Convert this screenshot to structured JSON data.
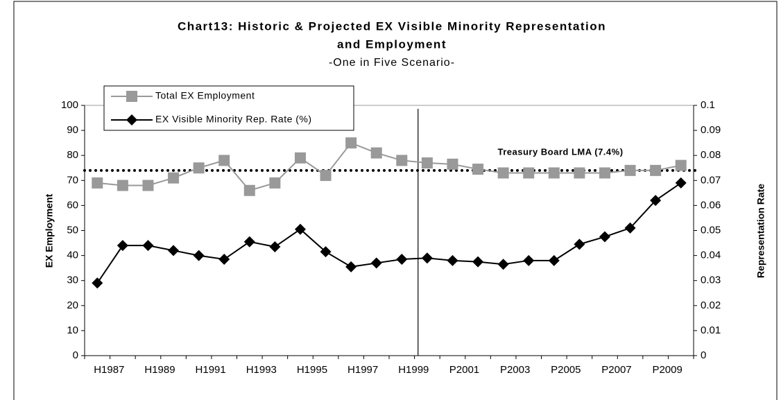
{
  "chart_data": {
    "type": "line",
    "title": "Chart13: Historic & Projected EX Visible Minority Representation",
    "title_line2": "and Employment",
    "subtitle": "-One in Five Scenario-",
    "y_label": "EX Employment",
    "y2_label": "Representation Rate",
    "categories": [
      "H1987",
      null,
      "H1989",
      null,
      "H1991",
      null,
      "H1993",
      null,
      "H1995",
      null,
      "H1997",
      null,
      "H1999",
      null,
      "P2001",
      null,
      "P2003",
      null,
      "P2005",
      null,
      "P2007",
      null,
      "P2009",
      null
    ],
    "series": [
      {
        "name": "Total EX Employment",
        "color": "#999999",
        "marker": "square",
        "values": [
          69,
          68,
          68,
          71,
          75,
          78,
          66,
          69,
          79,
          72,
          85,
          81,
          78,
          77,
          76.5,
          74.5,
          73,
          73,
          73,
          73,
          73,
          74,
          74,
          76
        ]
      },
      {
        "name": "EX Visible Minority Rep. Rate (%)",
        "color": "#000000",
        "marker": "diamond",
        "axis": "y2",
        "values": [
          0.029,
          0.044,
          0.044,
          0.042,
          0.04,
          0.0385,
          0.0455,
          0.0435,
          0.0505,
          0.0415,
          0.0355,
          0.037,
          0.0385,
          0.039,
          0.038,
          0.0375,
          0.0365,
          0.038,
          0.038,
          0.0445,
          0.0475,
          0.051,
          0.062,
          0.069
        ]
      }
    ],
    "reference_line": {
      "value": 0.074,
      "axis": "y2",
      "label": "Treasury Board LMA (7.4%)"
    },
    "ylim": [
      0,
      100
    ],
    "yticks": [
      0,
      10,
      20,
      30,
      40,
      50,
      60,
      70,
      80,
      90,
      100
    ],
    "y2lim": [
      0,
      0.1
    ],
    "y2ticks": [
      0,
      0.01,
      0.02,
      0.03,
      0.04,
      0.05,
      0.06,
      0.07,
      0.08,
      0.09,
      0.1
    ],
    "legend": "top-left"
  }
}
